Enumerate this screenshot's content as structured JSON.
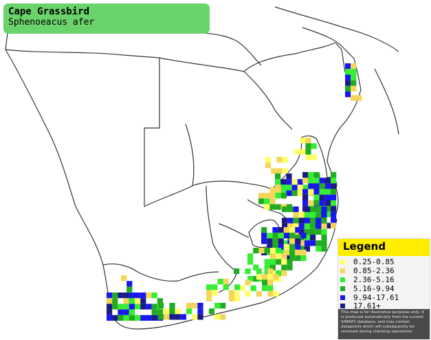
{
  "map": {
    "title": "Cape Grassbird",
    "subtitle": "Sphenoeacus afer"
  },
  "legend": {
    "title": "Legend",
    "items": [
      {
        "label": "0.25-0.85",
        "color": "#ffff66"
      },
      {
        "label": "0.85-2.36",
        "color": "#f5d55a"
      },
      {
        "label": "2.36-5.16",
        "color": "#33ee33"
      },
      {
        "label": "5.16-9.94",
        "color": "#22aa22"
      },
      {
        "label": "9.94-17.61",
        "color": "#1818ee"
      },
      {
        "label": "17.61+",
        "color": "#1a1a88"
      }
    ],
    "note": "This map is for illustrative purposes only; it is produced automatically from the current SABAP2 database, and may contain datapoints which will subsequently be removed during checking operations."
  },
  "colors": {
    "title_background": "#6bd36b",
    "legend_header": "#ffee00",
    "border_line": "#333333"
  }
}
